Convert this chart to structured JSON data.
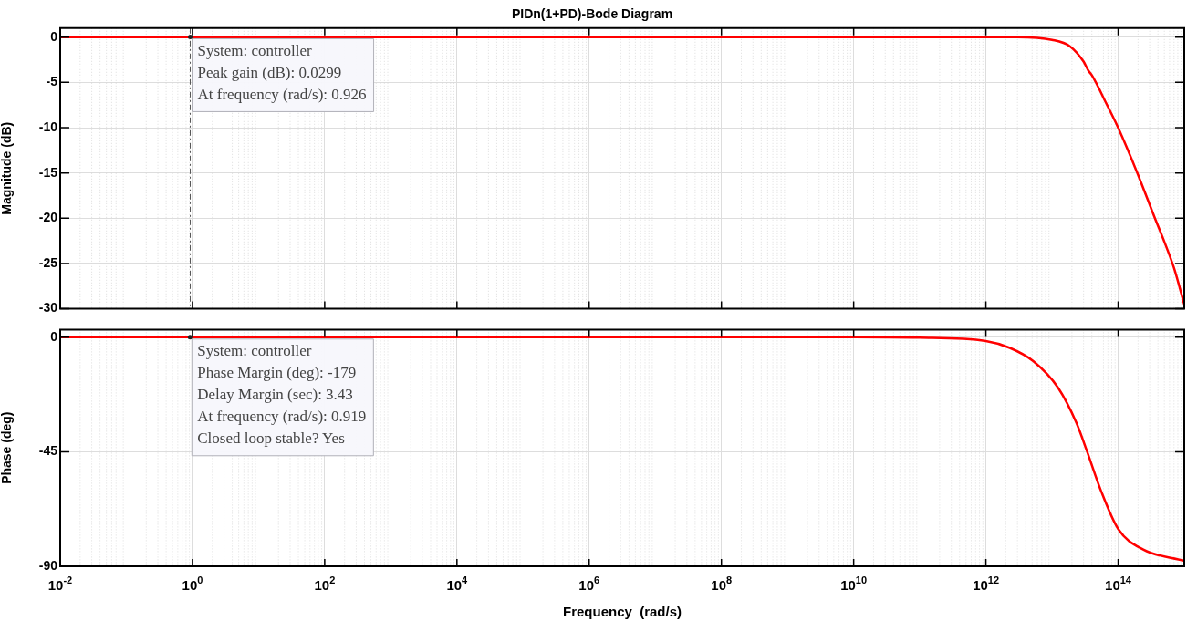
{
  "chart_data": [
    {
      "type": "line",
      "title": "PIDn(1+PD)-Bode Diagram",
      "ylabel": "Magnitude (dB)",
      "log": "x",
      "grid": true,
      "tick_labels": "y",
      "x": [
        0.01,
        1,
        1000000,
        1000000000000.0,
        3000000000000.0,
        10000000000000.0,
        18600000000000.0,
        30000000000000.0,
        35500000000000.0,
        40000000000000.0,
        66000000000000.0,
        100000000000000.0,
        195000000000000.0,
        360000000000000.0,
        500000000000000.0,
        700000000000000.0,
        1000000000000000.0
      ],
      "series": [
        {
          "color": "#ff0000",
          "values": [
            0,
            0,
            0,
            0,
            0,
            -0.3,
            -1.0,
            -2.7,
            -3.7,
            -4.2,
            -7.3,
            -10,
            -15,
            -20,
            -22.6,
            -25.5,
            -29.5
          ]
        }
      ],
      "xlim": [
        0.01,
        1000000000000000.0
      ],
      "ylim": [
        -30,
        1
      ],
      "xticks": [
        {
          "value": 0.01,
          "label": null
        },
        {
          "value": 1,
          "label": null
        },
        {
          "value": 100,
          "label": null
        },
        {
          "value": 10000,
          "label": null
        },
        {
          "value": 1000000,
          "label": null
        },
        {
          "value": 100000000,
          "label": null
        },
        {
          "value": 10000000000,
          "label": null
        },
        {
          "value": 1000000000000,
          "label": null
        },
        {
          "value": 100000000000000,
          "label": null
        }
      ],
      "yticks": [
        -30,
        -25,
        -20,
        -15,
        -10,
        -5,
        0
      ],
      "ref_lines": [
        {
          "axis": "x",
          "value": 0.926,
          "line_style": "dashed",
          "color": "#555555"
        }
      ],
      "annotations": [
        {
          "text": "System: controller\nPeak gain (dB): 0.0299\nAt frequency (rad/s): 0.926",
          "x": 0.926,
          "y": 0.0299
        }
      ]
    },
    {
      "type": "line",
      "ylabel": "Phase (deg)",
      "xlabel": "Frequency  (rad/s)",
      "log": "x",
      "grid": true,
      "x": [
        0.01,
        1,
        1000000,
        10000000000.0,
        100000000000.0,
        1000000000000.0,
        2300000000000.0,
        5200000000000.0,
        12300000000000.0,
        23400000000000.0,
        34000000000000.0,
        55000000000000.0,
        100000000000000.0,
        240000000000000.0,
        1000000000000000.0
      ],
      "series": [
        {
          "color": "#ff0000",
          "values": [
            0,
            0,
            0,
            0,
            -0.2,
            -1.5,
            -4.2,
            -9.4,
            -19.8,
            -33.7,
            -45,
            -60.3,
            -75.3,
            -83.4,
            -87.8
          ]
        }
      ],
      "xlim": [
        0.01,
        1000000000000000.0
      ],
      "ylim": [
        -90,
        3
      ],
      "xticks": [
        {
          "value": 0.01,
          "label": "10$^{-2}$"
        },
        {
          "value": 1,
          "label": "10$^{0}$"
        },
        {
          "value": 100,
          "label": "10$^{2}$"
        },
        {
          "value": 10000,
          "label": "10$^{4}$"
        },
        {
          "value": 1000000,
          "label": "10$^{6}$"
        },
        {
          "value": 100000000,
          "label": "10$^{8}$"
        },
        {
          "value": 10000000000,
          "label": "10$^{10}$"
        },
        {
          "value": 1000000000000,
          "label": "10$^{12}$"
        },
        {
          "value": 100000000000000,
          "label": "10$^{14}$"
        }
      ],
      "yticks": [
        -90,
        -45,
        0
      ],
      "annotations": [
        {
          "text": "System: controller\nPhase Margin (deg): -179\nDelay Margin (sec): 3.43\nAt frequency (rad/s): 0.919\nClosed loop stable? Yes",
          "x": 0.919,
          "y": 0
        }
      ]
    }
  ]
}
